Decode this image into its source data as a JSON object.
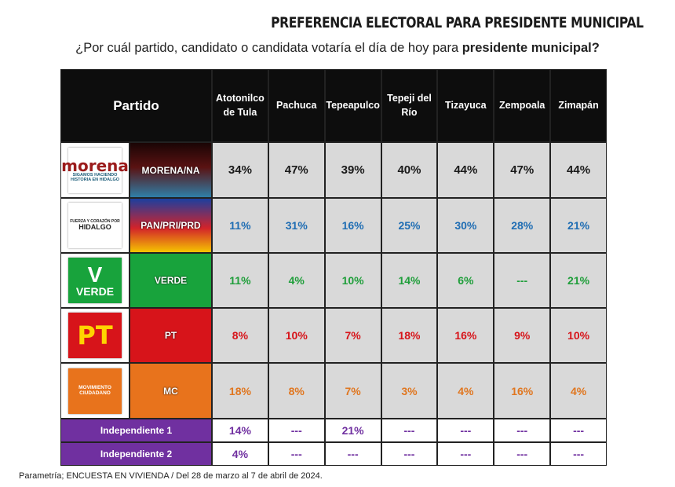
{
  "header": {
    "title": "PREFERENCIA ELECTORAL PARA PRESIDENTE MUNICIPAL",
    "subtitle": {
      "text": "¿Por cuál partido, candidato o candidata votaría el día de hoy para ",
      "bold": "presidente municipal?"
    }
  },
  "table": {
    "corner": "Partido",
    "columns": [
      "Atotonilco de Tula",
      "Pachuca",
      "Tepeapulco",
      "Tepeji del Río",
      "Tizayuca",
      "Zempoala",
      "Zimapán"
    ],
    "rows": [
      {
        "party": "MORENA/NA",
        "logo": [
          "morena",
          "SIGAMOS HACIENDO",
          "HISTORIA EN HIDALGO"
        ],
        "color": "#1a1a1a",
        "values": [
          "34%",
          "47%",
          "39%",
          "40%",
          "44%",
          "47%",
          "44%"
        ]
      },
      {
        "party": "PAN/PRI/PRD",
        "logo": [
          "FUERZA Y CORAZÓN POR",
          "HIDALGO"
        ],
        "color": "#1f6db3",
        "values": [
          "11%",
          "31%",
          "16%",
          "25%",
          "30%",
          "28%",
          "21%"
        ]
      },
      {
        "party": "VERDE",
        "logo": [
          "V",
          "VERDE"
        ],
        "color": "#1f9e3a",
        "values": [
          "11%",
          "4%",
          "10%",
          "14%",
          "6%",
          "---",
          "21%"
        ]
      },
      {
        "party": "PT",
        "logo": [
          "PT"
        ],
        "color": "#d7141a",
        "values": [
          "8%",
          "10%",
          "7%",
          "18%",
          "16%",
          "9%",
          "10%"
        ]
      },
      {
        "party": "MC",
        "logo": [
          "MOVIMIENTO",
          "CIUDADANO"
        ],
        "color": "#e0761f",
        "values": [
          "18%",
          "8%",
          "7%",
          "3%",
          "4%",
          "16%",
          "4%"
        ]
      },
      {
        "party": "Independiente 1",
        "color": "#7030a0",
        "values": [
          "14%",
          "---",
          "21%",
          "---",
          "---",
          "---",
          "---"
        ]
      },
      {
        "party": "Independiente 2",
        "color": "#7030a0",
        "values": [
          "4%",
          "---",
          "---",
          "---",
          "---",
          "---",
          "---"
        ]
      }
    ]
  },
  "footer": "Parametría; ENCUESTA EN VIVIENDA / Del 28 de marzo al 7 de abril de 2024."
}
